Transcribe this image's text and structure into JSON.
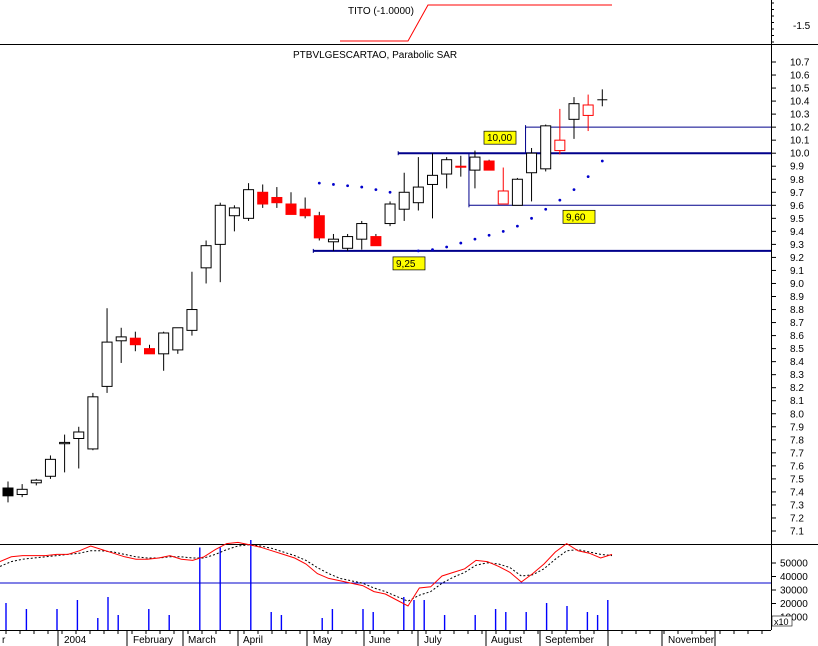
{
  "top_panel": {
    "title": "TITO (-1.0000)",
    "right_label": "-1.5"
  },
  "main_panel": {
    "title": "PTBVLGESCARTAO, Parabolic SAR",
    "y_ticks": [
      "7.1",
      "7.2",
      "7.3",
      "7.4",
      "7.5",
      "7.6",
      "7.7",
      "7.8",
      "7.9",
      "8.0",
      "8.1",
      "8.2",
      "8.3",
      "8.4",
      "8.5",
      "8.6",
      "8.7",
      "8.8",
      "8.9",
      "9.0",
      "9.1",
      "9.2",
      "9.3",
      "9.4",
      "9.5",
      "9.6",
      "9.7",
      "9.8",
      "9.9",
      "10.0",
      "10.1",
      "10.2",
      "10.3",
      "10.4",
      "10.5",
      "10.6",
      "10.7"
    ],
    "annotations": [
      {
        "label": "10,00",
        "value": 10.0
      },
      {
        "label": "9,60",
        "value": 9.6
      },
      {
        "label": "9,25",
        "value": 9.25
      }
    ]
  },
  "volume_panel": {
    "y_ticks": [
      "50000",
      "40000",
      "30000",
      "20000",
      "10000"
    ],
    "multiplier": "x10"
  },
  "x_axis": {
    "labels": [
      "r",
      "2004",
      "February",
      "March",
      "April",
      "May",
      "June",
      "July",
      "August",
      "September",
      "November"
    ]
  },
  "colors": {
    "bullish": "#ffffff",
    "bearish": "#ff0000",
    "sar": "#0000cc",
    "hline": "#00008b",
    "annotation_bg": "#ffff00",
    "oscillator_line": "#ff0000",
    "oscillator_signal": "#000000",
    "volume": "#0000ff"
  },
  "chart_data": {
    "type": "candlestick",
    "title": "PTBVLGESCARTAO, Parabolic SAR",
    "ylim": [
      7.05,
      10.75
    ],
    "candles": [
      {
        "i": 0,
        "o": 7.43,
        "h": 7.48,
        "l": 7.32,
        "c": 7.37,
        "color": "black"
      },
      {
        "i": 1,
        "o": 7.38,
        "h": 7.46,
        "l": 7.36,
        "c": 7.42,
        "color": "white"
      },
      {
        "i": 2,
        "o": 7.47,
        "h": 7.5,
        "l": 7.45,
        "c": 7.49,
        "color": "white"
      },
      {
        "i": 3,
        "o": 7.52,
        "h": 7.68,
        "l": 7.5,
        "c": 7.65,
        "color": "white"
      },
      {
        "i": 4,
        "o": 7.77,
        "h": 7.84,
        "l": 7.55,
        "c": 7.78,
        "color": "white"
      },
      {
        "i": 5,
        "o": 7.81,
        "h": 7.9,
        "l": 7.58,
        "c": 7.86,
        "color": "white"
      },
      {
        "i": 6,
        "o": 7.73,
        "h": 8.16,
        "l": 7.72,
        "c": 8.13,
        "color": "white"
      },
      {
        "i": 7,
        "o": 8.21,
        "h": 8.81,
        "l": 8.16,
        "c": 8.55,
        "color": "white"
      },
      {
        "i": 8,
        "o": 8.56,
        "h": 8.66,
        "l": 8.39,
        "c": 8.59,
        "color": "white"
      },
      {
        "i": 9,
        "o": 8.58,
        "h": 8.63,
        "l": 8.48,
        "c": 8.53,
        "color": "red"
      },
      {
        "i": 10,
        "o": 8.5,
        "h": 8.53,
        "l": 8.46,
        "c": 8.46,
        "color": "red"
      },
      {
        "i": 11,
        "o": 8.46,
        "h": 8.63,
        "l": 8.33,
        "c": 8.62,
        "color": "white"
      },
      {
        "i": 12,
        "o": 8.49,
        "h": 8.66,
        "l": 8.46,
        "c": 8.66,
        "color": "white"
      },
      {
        "i": 13,
        "o": 8.64,
        "h": 9.09,
        "l": 8.6,
        "c": 8.8,
        "color": "white"
      },
      {
        "i": 14,
        "o": 9.12,
        "h": 9.33,
        "l": 9.0,
        "c": 9.29,
        "color": "white"
      },
      {
        "i": 15,
        "o": 9.3,
        "h": 9.62,
        "l": 9.01,
        "c": 9.6,
        "color": "white"
      },
      {
        "i": 16,
        "o": 9.58,
        "h": 9.6,
        "l": 9.4,
        "c": 9.52,
        "color": "white"
      },
      {
        "i": 17,
        "o": 9.5,
        "h": 9.77,
        "l": 9.48,
        "c": 9.72,
        "color": "white"
      },
      {
        "i": 18,
        "o": 9.7,
        "h": 9.76,
        "l": 9.58,
        "c": 9.61,
        "color": "red"
      },
      {
        "i": 19,
        "o": 9.66,
        "h": 9.74,
        "l": 9.58,
        "c": 9.62,
        "color": "red"
      },
      {
        "i": 20,
        "o": 9.61,
        "h": 9.7,
        "l": 9.56,
        "c": 9.53,
        "color": "red"
      },
      {
        "i": 21,
        "o": 9.57,
        "h": 9.66,
        "l": 9.5,
        "c": 9.52,
        "color": "red"
      },
      {
        "i": 22,
        "o": 9.52,
        "h": 9.55,
        "l": 9.33,
        "c": 9.35,
        "color": "red"
      },
      {
        "i": 23,
        "o": 9.32,
        "h": 9.38,
        "l": 9.25,
        "c": 9.34,
        "color": "white"
      },
      {
        "i": 24,
        "o": 9.27,
        "h": 9.38,
        "l": 9.25,
        "c": 9.36,
        "color": "white"
      },
      {
        "i": 25,
        "o": 9.34,
        "h": 9.48,
        "l": 9.26,
        "c": 9.46,
        "color": "white"
      },
      {
        "i": 26,
        "o": 9.36,
        "h": 9.38,
        "l": 9.3,
        "c": 9.29,
        "color": "red"
      },
      {
        "i": 27,
        "o": 9.46,
        "h": 9.63,
        "l": 9.44,
        "c": 9.61,
        "color": "white"
      },
      {
        "i": 28,
        "o": 9.57,
        "h": 9.85,
        "l": 9.48,
        "c": 9.7,
        "color": "white"
      },
      {
        "i": 29,
        "o": 9.62,
        "h": 9.97,
        "l": 9.56,
        "c": 9.74,
        "color": "white"
      },
      {
        "i": 30,
        "o": 9.76,
        "h": 10.0,
        "l": 9.5,
        "c": 9.83,
        "color": "white"
      },
      {
        "i": 31,
        "o": 9.84,
        "h": 9.97,
        "l": 9.73,
        "c": 9.95,
        "color": "white"
      },
      {
        "i": 32,
        "o": 9.9,
        "h": 9.98,
        "l": 9.82,
        "c": 9.9,
        "color": "red"
      },
      {
        "i": 33,
        "o": 9.87,
        "h": 10.02,
        "l": 9.73,
        "c": 9.97,
        "color": "white"
      },
      {
        "i": 34,
        "o": 9.94,
        "h": 9.95,
        "l": 9.88,
        "c": 9.87,
        "color": "red"
      },
      {
        "i": 35,
        "o": 9.71,
        "h": 9.89,
        "l": 9.61,
        "c": 9.61,
        "color": "hollow-red"
      },
      {
        "i": 36,
        "o": 9.6,
        "h": 9.81,
        "l": 9.6,
        "c": 9.8,
        "color": "white"
      },
      {
        "i": 37,
        "o": 9.85,
        "h": 10.04,
        "l": 9.63,
        "c": 10.0,
        "color": "white"
      },
      {
        "i": 38,
        "o": 9.88,
        "h": 10.22,
        "l": 9.86,
        "c": 10.21,
        "color": "white"
      },
      {
        "i": 39,
        "o": 10.1,
        "h": 10.34,
        "l": 9.99,
        "c": 10.02,
        "color": "hollow-red"
      },
      {
        "i": 40,
        "o": 10.26,
        "h": 10.43,
        "l": 10.11,
        "c": 10.38,
        "color": "white"
      },
      {
        "i": 41,
        "o": 10.37,
        "h": 10.45,
        "l": 10.17,
        "c": 10.29,
        "color": "hollow-red"
      },
      {
        "i": 42,
        "o": 10.41,
        "h": 10.49,
        "l": 10.36,
        "c": 10.41,
        "color": "doji"
      }
    ],
    "sar": [
      {
        "i": 22,
        "v": 9.77
      },
      {
        "i": 23,
        "v": 9.76
      },
      {
        "i": 24,
        "v": 9.75
      },
      {
        "i": 25,
        "v": 9.74
      },
      {
        "i": 26,
        "v": 9.72
      },
      {
        "i": 27,
        "v": 9.7
      },
      {
        "i": 28,
        "v": 9.67
      },
      {
        "i": 29,
        "v": 9.25
      },
      {
        "i": 30,
        "v": 9.26
      },
      {
        "i": 31,
        "v": 9.28
      },
      {
        "i": 32,
        "v": 9.31
      },
      {
        "i": 33,
        "v": 9.34
      },
      {
        "i": 34,
        "v": 9.37
      },
      {
        "i": 35,
        "v": 9.4
      },
      {
        "i": 36,
        "v": 9.44
      },
      {
        "i": 37,
        "v": 9.5
      },
      {
        "i": 38,
        "v": 9.57
      },
      {
        "i": 39,
        "v": 9.64
      },
      {
        "i": 40,
        "v": 9.72
      },
      {
        "i": 41,
        "v": 9.82
      },
      {
        "i": 42,
        "v": 9.94
      }
    ],
    "horizontal_lines": [
      {
        "value": 10.2,
        "from_i": 37,
        "thick": false
      },
      {
        "value": 10.0,
        "from_i": 28,
        "thick": true
      },
      {
        "value": 9.6,
        "from_i": 33,
        "thick": false
      },
      {
        "value": 9.25,
        "from_i": 22,
        "thick": true
      }
    ],
    "oscillator": {
      "line": [
        42,
        46,
        47,
        47,
        47,
        48,
        48,
        51,
        55,
        52,
        49,
        46,
        44,
        44,
        45,
        47,
        44,
        43,
        46,
        52,
        57,
        58,
        56,
        54,
        51,
        48,
        45,
        40,
        32,
        28,
        26,
        24,
        22,
        17,
        15,
        10,
        5,
        20,
        21,
        30,
        33,
        36,
        43,
        42,
        38,
        33,
        25,
        32,
        40,
        50,
        57,
        51,
        49,
        45,
        48
      ],
      "signal": [
        38,
        42,
        44,
        45,
        46,
        47,
        48,
        49,
        51,
        51,
        50,
        48,
        46,
        45,
        45,
        46,
        46,
        45,
        45,
        48,
        52,
        55,
        56,
        55,
        53,
        50,
        47,
        43,
        37,
        32,
        28,
        26,
        24,
        20,
        17,
        13,
        9,
        14,
        17,
        24,
        29,
        33,
        39,
        41,
        40,
        37,
        30,
        31,
        36,
        44,
        51,
        52,
        50,
        48,
        47
      ],
      "level": 35
    },
    "volume": [
      18,
      0,
      14,
      0,
      0,
      14,
      0,
      20,
      0,
      8,
      22,
      10,
      0,
      0,
      14,
      0,
      10,
      0,
      0,
      55,
      0,
      55,
      0,
      0,
      60,
      0,
      12,
      10,
      0,
      0,
      0,
      8,
      14,
      0,
      0,
      14,
      12,
      0,
      0,
      22,
      20,
      20,
      0,
      10,
      0,
      0,
      10,
      0,
      14,
      12,
      0,
      12,
      0,
      18,
      0,
      16,
      0,
      12,
      10,
      20
    ]
  }
}
